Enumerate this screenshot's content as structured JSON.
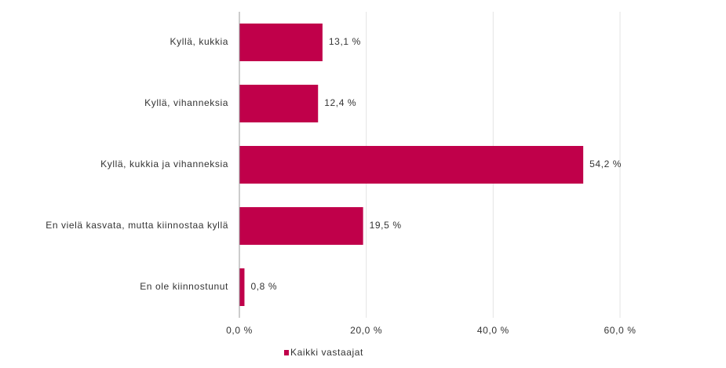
{
  "chart_data": {
    "type": "bar",
    "orientation": "horizontal",
    "categories": [
      "Kyllä, kukkia",
      "Kyllä, vihanneksia",
      "Kyllä, kukkia ja vihanneksia",
      "En vielä kasvata, mutta kiinnostaa kyllä",
      "En ole kiinnostunut"
    ],
    "series": [
      {
        "name": "Kaikki vastaajat",
        "color": "#c0004a",
        "values": [
          13.1,
          12.4,
          54.2,
          19.5,
          0.8
        ],
        "value_labels": [
          "13,1 %",
          "12,4 %",
          "54,2 %",
          "19,5 %",
          "0,8 %"
        ]
      }
    ],
    "xlim": [
      0,
      60
    ],
    "xticks": [
      {
        "value": 0,
        "label": "0,0 %"
      },
      {
        "value": 20,
        "label": "20,0 %"
      },
      {
        "value": 40,
        "label": "40,0 %"
      },
      {
        "value": 60,
        "label": "60,0 %"
      }
    ],
    "grid": true,
    "legend": "bottom"
  }
}
